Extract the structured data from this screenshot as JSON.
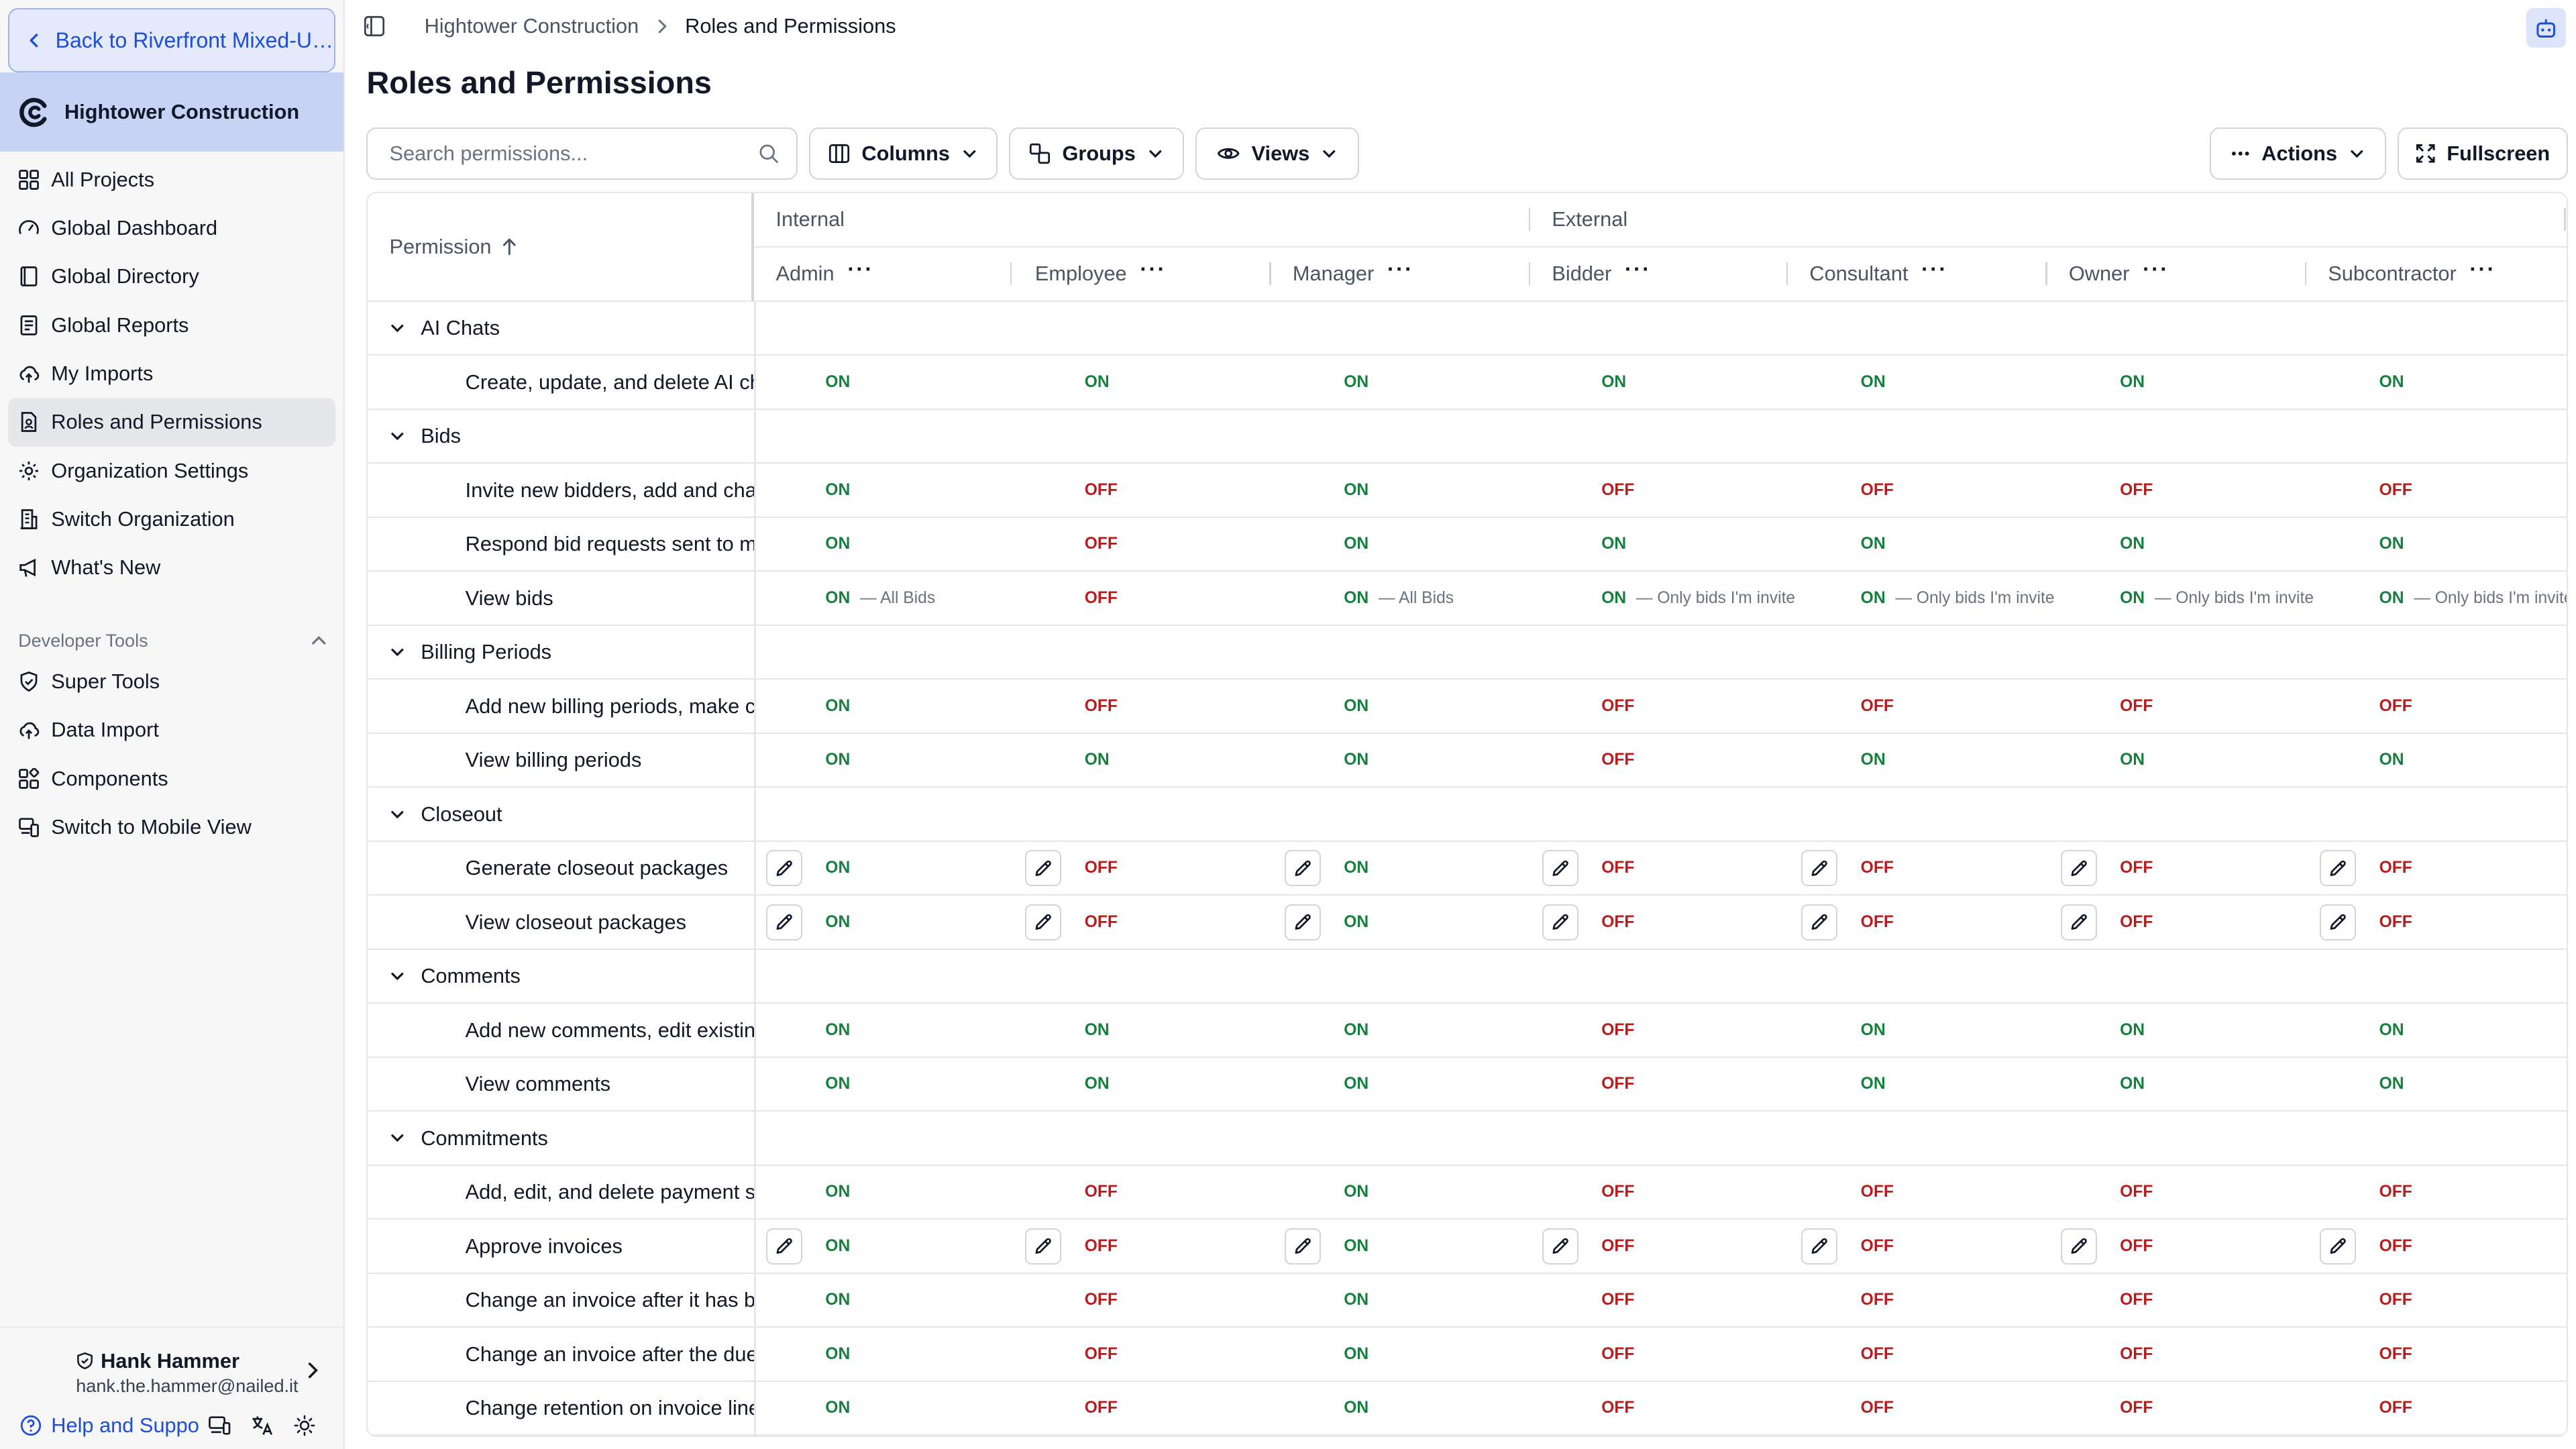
{
  "sidebar": {
    "back_label": "Back to Riverfront Mixed-Us...",
    "org_name": "Hightower Construction",
    "nav_items": [
      {
        "label": "All Projects",
        "icon": "grid-icon",
        "active": false
      },
      {
        "label": "Global Dashboard",
        "icon": "gauge-icon",
        "active": false
      },
      {
        "label": "Global Directory",
        "icon": "book-icon",
        "active": false
      },
      {
        "label": "Global Reports",
        "icon": "report-icon",
        "active": false
      },
      {
        "label": "My Imports",
        "icon": "cloud-upload-icon",
        "active": false
      },
      {
        "label": "Roles and Permissions",
        "icon": "user-file-icon",
        "active": true
      },
      {
        "label": "Organization Settings",
        "icon": "gear-icon",
        "active": false
      },
      {
        "label": "Switch Organization",
        "icon": "building-icon",
        "active": false
      },
      {
        "label": "What's New",
        "icon": "megaphone-icon",
        "active": false
      }
    ],
    "dev_tools_label": "Developer Tools",
    "dev_items": [
      {
        "label": "Super Tools",
        "icon": "shield-icon"
      },
      {
        "label": "Data Import",
        "icon": "cloud-upload-icon"
      },
      {
        "label": "Components",
        "icon": "components-icon"
      },
      {
        "label": "Switch to Mobile View",
        "icon": "mobile-icon"
      }
    ],
    "user": {
      "name": "Hank Hammer",
      "email": "hank.the.hammer@nailed.it"
    },
    "help_label": "Help and Suppo"
  },
  "breadcrumb": {
    "parent": "Hightower Construction",
    "current": "Roles and Permissions"
  },
  "page_title": "Roles and Permissions",
  "toolbar": {
    "search_placeholder": "Search permissions...",
    "columns_label": "Columns",
    "groups_label": "Groups",
    "views_label": "Views",
    "actions_label": "Actions",
    "fullscreen_label": "Fullscreen"
  },
  "table": {
    "permission_header": "Permission",
    "groups": [
      {
        "label": "Internal"
      },
      {
        "label": "External"
      }
    ],
    "roles": [
      "Admin",
      "Employee",
      "Manager",
      "Bidder",
      "Consultant",
      "Owner",
      "Subcontractor"
    ],
    "rows": [
      {
        "type": "category",
        "label": "AI Chats"
      },
      {
        "type": "perm",
        "label": "Create, update, and delete AI chats",
        "edit": false,
        "values": [
          "ON",
          "ON",
          "ON",
          "ON",
          "ON",
          "ON",
          "ON"
        ]
      },
      {
        "type": "category",
        "label": "Bids"
      },
      {
        "type": "perm",
        "label": "Invite new bidders, add and change bids",
        "edit": false,
        "values": [
          "ON",
          "OFF",
          "ON",
          "OFF",
          "OFF",
          "OFF",
          "OFF"
        ]
      },
      {
        "type": "perm",
        "label": "Respond bid requests sent to me",
        "edit": false,
        "values": [
          "ON",
          "OFF",
          "ON",
          "ON",
          "ON",
          "ON",
          "ON"
        ]
      },
      {
        "type": "perm",
        "label": "View bids",
        "edit": false,
        "values": [
          "ON",
          "OFF",
          "ON",
          "ON",
          "ON",
          "ON",
          "ON"
        ],
        "notes": [
          "— All Bids",
          "",
          "— All Bids",
          "— Only bids I'm invite",
          "— Only bids I'm invite",
          "— Only bids I'm invite",
          "— Only bids I'm invite"
        ]
      },
      {
        "type": "category",
        "label": "Billing Periods"
      },
      {
        "type": "perm",
        "label": "Add new billing periods, make changes",
        "edit": false,
        "values": [
          "ON",
          "OFF",
          "ON",
          "OFF",
          "OFF",
          "OFF",
          "OFF"
        ]
      },
      {
        "type": "perm",
        "label": "View billing periods",
        "edit": false,
        "values": [
          "ON",
          "ON",
          "ON",
          "OFF",
          "ON",
          "ON",
          "ON"
        ]
      },
      {
        "type": "category",
        "label": "Closeout"
      },
      {
        "type": "perm",
        "label": "Generate closeout packages",
        "edit": true,
        "values": [
          "ON",
          "OFF",
          "ON",
          "OFF",
          "OFF",
          "OFF",
          "OFF"
        ]
      },
      {
        "type": "perm",
        "label": "View closeout packages",
        "edit": true,
        "values": [
          "ON",
          "OFF",
          "ON",
          "OFF",
          "OFF",
          "OFF",
          "OFF"
        ]
      },
      {
        "type": "category",
        "label": "Comments"
      },
      {
        "type": "perm",
        "label": "Add new comments, edit existing",
        "edit": false,
        "values": [
          "ON",
          "ON",
          "ON",
          "OFF",
          "ON",
          "ON",
          "ON"
        ]
      },
      {
        "type": "perm",
        "label": "View comments",
        "edit": false,
        "values": [
          "ON",
          "ON",
          "ON",
          "OFF",
          "ON",
          "ON",
          "ON"
        ]
      },
      {
        "type": "category",
        "label": "Commitments"
      },
      {
        "type": "perm",
        "label": "Add, edit, and delete payment summaries",
        "edit": false,
        "values": [
          "ON",
          "OFF",
          "ON",
          "OFF",
          "OFF",
          "OFF",
          "OFF"
        ]
      },
      {
        "type": "perm",
        "label": "Approve invoices",
        "edit": true,
        "values": [
          "ON",
          "OFF",
          "ON",
          "OFF",
          "OFF",
          "OFF",
          "OFF"
        ]
      },
      {
        "type": "perm",
        "label": "Change an invoice after it has been approved",
        "edit": false,
        "values": [
          "ON",
          "OFF",
          "ON",
          "OFF",
          "OFF",
          "OFF",
          "OFF"
        ]
      },
      {
        "type": "perm",
        "label": "Change an invoice after the due date",
        "edit": false,
        "values": [
          "ON",
          "OFF",
          "ON",
          "OFF",
          "OFF",
          "OFF",
          "OFF"
        ]
      },
      {
        "type": "perm",
        "label": "Change retention on invoice line items",
        "edit": false,
        "values": [
          "ON",
          "OFF",
          "ON",
          "OFF",
          "OFF",
          "OFF",
          "OFF"
        ]
      }
    ]
  },
  "colors": {
    "on": "#15803d",
    "off": "#b91c1c",
    "accent": "#1d4ed8",
    "banner": "#c7d3f5"
  }
}
